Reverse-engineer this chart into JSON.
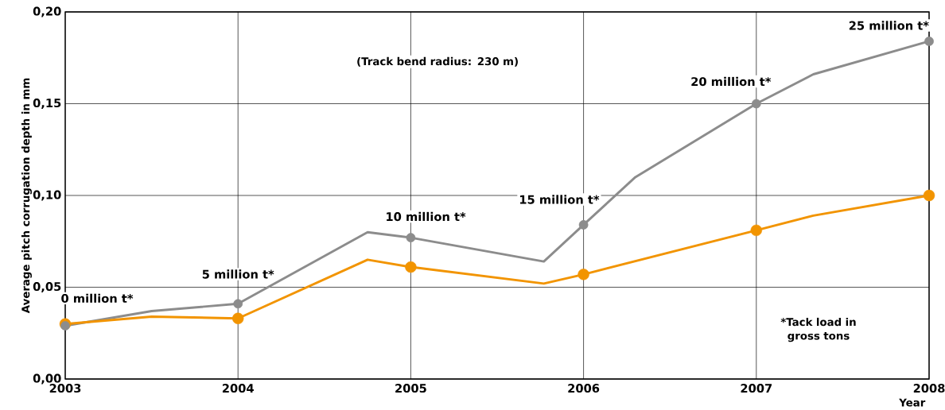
{
  "chart_data": {
    "type": "line",
    "xlabel": "Year",
    "ylabel": "Average pitch corrugation depth in mm",
    "xlim": [
      2003,
      2008
    ],
    "xticks": [
      2003,
      2004,
      2005,
      2006,
      2007,
      2008
    ],
    "ylim": [
      0,
      0.2
    ],
    "yticks": [
      {
        "value": 0,
        "label": "0,00"
      },
      {
        "value": 0.05,
        "label": "0,05"
      },
      {
        "value": 0.1,
        "label": "0,10"
      },
      {
        "value": 0.15,
        "label": "0,15"
      },
      {
        "value": 0.2,
        "label": "0,20"
      }
    ],
    "grid": true,
    "line_style": "solid",
    "series": [
      {
        "color": "#8c8c8c",
        "x": [
          2003,
          2003.5,
          2004,
          2004.75,
          2005,
          2005.77,
          2006,
          2006.3,
          2007,
          2007.33,
          2008
        ],
        "values": [
          0.029,
          0.037,
          0.041,
          0.08,
          0.077,
          0.064,
          0.084,
          0.11,
          0.15,
          0.166,
          0.184
        ]
      },
      {
        "color": "#f29400",
        "x": [
          2003,
          2003.5,
          2004,
          2004.75,
          2005,
          2005.77,
          2006,
          2007,
          2007.33,
          2008
        ],
        "values": [
          0.03,
          0.034,
          0.033,
          0.065,
          0.061,
          0.052,
          0.057,
          0.081,
          0.089,
          0.1
        ]
      },
      {
        "type": "scatter",
        "marker": "circle",
        "color": "#f29400",
        "x": [
          2003,
          2004,
          2005,
          2006,
          2007,
          2008
        ],
        "values": [
          0.03,
          0.033,
          0.061,
          0.057,
          0.081,
          0.1
        ]
      },
      {
        "type": "scatter",
        "marker": "circle",
        "color": "#8c8c8c",
        "x": [
          2003,
          2004,
          2005,
          2006,
          2007,
          2008
        ],
        "values": [
          0.029,
          0.041,
          0.077,
          0.084,
          0.15,
          0.184
        ]
      }
    ],
    "annotations": [
      {
        "text": "0 million t*",
        "x": 2003,
        "y": 0.029
      },
      {
        "text": "5 million t*",
        "x": 2004,
        "y": 0.041
      },
      {
        "text": "10 million t*",
        "x": 2005,
        "y": 0.077
      },
      {
        "text": "15 million t*",
        "x": 2006,
        "y": 0.084
      },
      {
        "text": "20 million t*",
        "x": 2007,
        "y": 0.15
      },
      {
        "text": "25 million t*",
        "x": 2008,
        "y": 0.184
      },
      "(Track bend radius: 230 m)",
      "*Tack load in gross tons"
    ]
  }
}
